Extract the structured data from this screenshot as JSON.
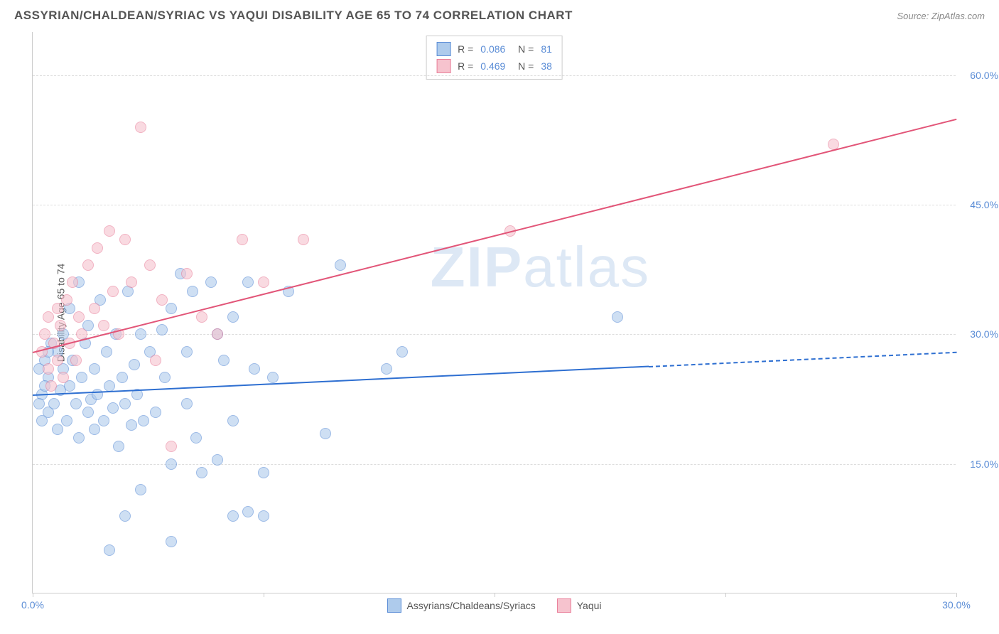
{
  "header": {
    "title": "ASSYRIAN/CHALDEAN/SYRIAC VS YAQUI DISABILITY AGE 65 TO 74 CORRELATION CHART",
    "source": "Source: ZipAtlas.com"
  },
  "watermark": {
    "zip": "ZIP",
    "atlas": "atlas"
  },
  "chart": {
    "type": "scatter",
    "ylabel": "Disability Age 65 to 74",
    "background_color": "#ffffff",
    "grid_color": "#dddddd",
    "axis_color": "#cccccc",
    "label_color": "#555555",
    "value_color": "#5b8dd6",
    "xlim": [
      0,
      30
    ],
    "ylim": [
      0,
      65
    ],
    "xticks": [
      {
        "v": 0,
        "label": "0.0%"
      },
      {
        "v": 7.5,
        "label": ""
      },
      {
        "v": 15,
        "label": ""
      },
      {
        "v": 22.5,
        "label": ""
      },
      {
        "v": 30,
        "label": "30.0%"
      }
    ],
    "yticks": [
      {
        "v": 15,
        "label": "15.0%"
      },
      {
        "v": 30,
        "label": "30.0%"
      },
      {
        "v": 45,
        "label": "45.0%"
      },
      {
        "v": 60,
        "label": "60.0%"
      }
    ],
    "series": [
      {
        "name": "Assyrians/Chaldeans/Syriacs",
        "color_fill": "#aecbec",
        "color_stroke": "#5b8dd6",
        "line_color": "#2e6fd1",
        "marker_radius": 8,
        "r": "0.086",
        "n": "81",
        "regression": {
          "x1": 0,
          "y1": 23,
          "x2": 30,
          "y2": 28,
          "solid_until_x": 20
        },
        "points": [
          [
            0.3,
            23
          ],
          [
            0.4,
            27
          ],
          [
            0.5,
            21
          ],
          [
            0.5,
            25
          ],
          [
            0.6,
            29
          ],
          [
            0.7,
            22
          ],
          [
            0.8,
            19
          ],
          [
            0.8,
            28
          ],
          [
            0.9,
            23.5
          ],
          [
            1.0,
            26
          ],
          [
            1.0,
            30
          ],
          [
            1.1,
            20
          ],
          [
            1.2,
            33
          ],
          [
            1.2,
            24
          ],
          [
            1.3,
            27
          ],
          [
            1.4,
            22
          ],
          [
            1.5,
            36
          ],
          [
            1.5,
            18
          ],
          [
            1.6,
            25
          ],
          [
            1.7,
            29
          ],
          [
            1.8,
            21
          ],
          [
            1.8,
            31
          ],
          [
            1.9,
            22.5
          ],
          [
            2.0,
            26
          ],
          [
            2.0,
            19
          ],
          [
            2.1,
            23
          ],
          [
            2.2,
            34
          ],
          [
            2.3,
            20
          ],
          [
            2.4,
            28
          ],
          [
            2.5,
            24
          ],
          [
            2.6,
            21.5
          ],
          [
            2.7,
            30
          ],
          [
            2.8,
            17
          ],
          [
            2.9,
            25
          ],
          [
            3.0,
            22
          ],
          [
            3.1,
            35
          ],
          [
            3.2,
            19.5
          ],
          [
            3.3,
            26.5
          ],
          [
            3.4,
            23
          ],
          [
            3.5,
            30
          ],
          [
            3.6,
            20
          ],
          [
            3.8,
            28
          ],
          [
            4.0,
            21
          ],
          [
            4.2,
            30.5
          ],
          [
            4.3,
            25
          ],
          [
            4.5,
            33
          ],
          [
            4.5,
            15
          ],
          [
            4.8,
            37
          ],
          [
            5.0,
            28
          ],
          [
            5.0,
            22
          ],
          [
            5.2,
            35
          ],
          [
            5.3,
            18
          ],
          [
            5.5,
            14
          ],
          [
            5.8,
            36
          ],
          [
            6.0,
            15.5
          ],
          [
            6.0,
            30
          ],
          [
            6.2,
            27
          ],
          [
            6.5,
            9
          ],
          [
            6.5,
            32
          ],
          [
            6.5,
            20
          ],
          [
            7.0,
            9.5
          ],
          [
            7.0,
            36
          ],
          [
            7.2,
            26
          ],
          [
            7.5,
            9
          ],
          [
            7.5,
            14
          ],
          [
            7.8,
            25
          ],
          [
            8.3,
            35
          ],
          [
            9.5,
            18.5
          ],
          [
            10.0,
            38
          ],
          [
            11.5,
            26
          ],
          [
            12.0,
            28
          ],
          [
            2.5,
            5
          ],
          [
            4.5,
            6
          ],
          [
            3.0,
            9
          ],
          [
            3.5,
            12
          ],
          [
            19.0,
            32
          ],
          [
            0.2,
            22
          ],
          [
            0.2,
            26
          ],
          [
            0.3,
            20
          ],
          [
            0.4,
            24
          ],
          [
            0.5,
            28
          ]
        ]
      },
      {
        "name": "Yaqui",
        "color_fill": "#f6c3ce",
        "color_stroke": "#e97f9a",
        "line_color": "#e25578",
        "marker_radius": 8,
        "r": "0.469",
        "n": "38",
        "regression": {
          "x1": 0,
          "y1": 28,
          "x2": 30,
          "y2": 55,
          "solid_until_x": 30
        },
        "points": [
          [
            0.3,
            28
          ],
          [
            0.4,
            30
          ],
          [
            0.5,
            26
          ],
          [
            0.5,
            32
          ],
          [
            0.6,
            24
          ],
          [
            0.7,
            29
          ],
          [
            0.8,
            33
          ],
          [
            0.8,
            27
          ],
          [
            0.9,
            31
          ],
          [
            1.0,
            25
          ],
          [
            1.1,
            34
          ],
          [
            1.2,
            29
          ],
          [
            1.3,
            36
          ],
          [
            1.4,
            27
          ],
          [
            1.5,
            32
          ],
          [
            1.6,
            30
          ],
          [
            1.8,
            38
          ],
          [
            2.0,
            33
          ],
          [
            2.1,
            40
          ],
          [
            2.3,
            31
          ],
          [
            2.5,
            42
          ],
          [
            2.6,
            35
          ],
          [
            2.8,
            30
          ],
          [
            3.0,
            41
          ],
          [
            3.2,
            36
          ],
          [
            3.5,
            54
          ],
          [
            3.8,
            38
          ],
          [
            4.0,
            27
          ],
          [
            4.2,
            34
          ],
          [
            4.5,
            17
          ],
          [
            5.0,
            37
          ],
          [
            5.5,
            32
          ],
          [
            6.0,
            30
          ],
          [
            6.8,
            41
          ],
          [
            7.5,
            36
          ],
          [
            8.8,
            41
          ],
          [
            15.5,
            42
          ],
          [
            26.0,
            52
          ]
        ]
      }
    ],
    "legend_bottom": [
      {
        "label": "Assyrians/Chaldeans/Syriacs",
        "fill": "#aecbec",
        "stroke": "#5b8dd6"
      },
      {
        "label": "Yaqui",
        "fill": "#f6c3ce",
        "stroke": "#e97f9a"
      }
    ]
  }
}
